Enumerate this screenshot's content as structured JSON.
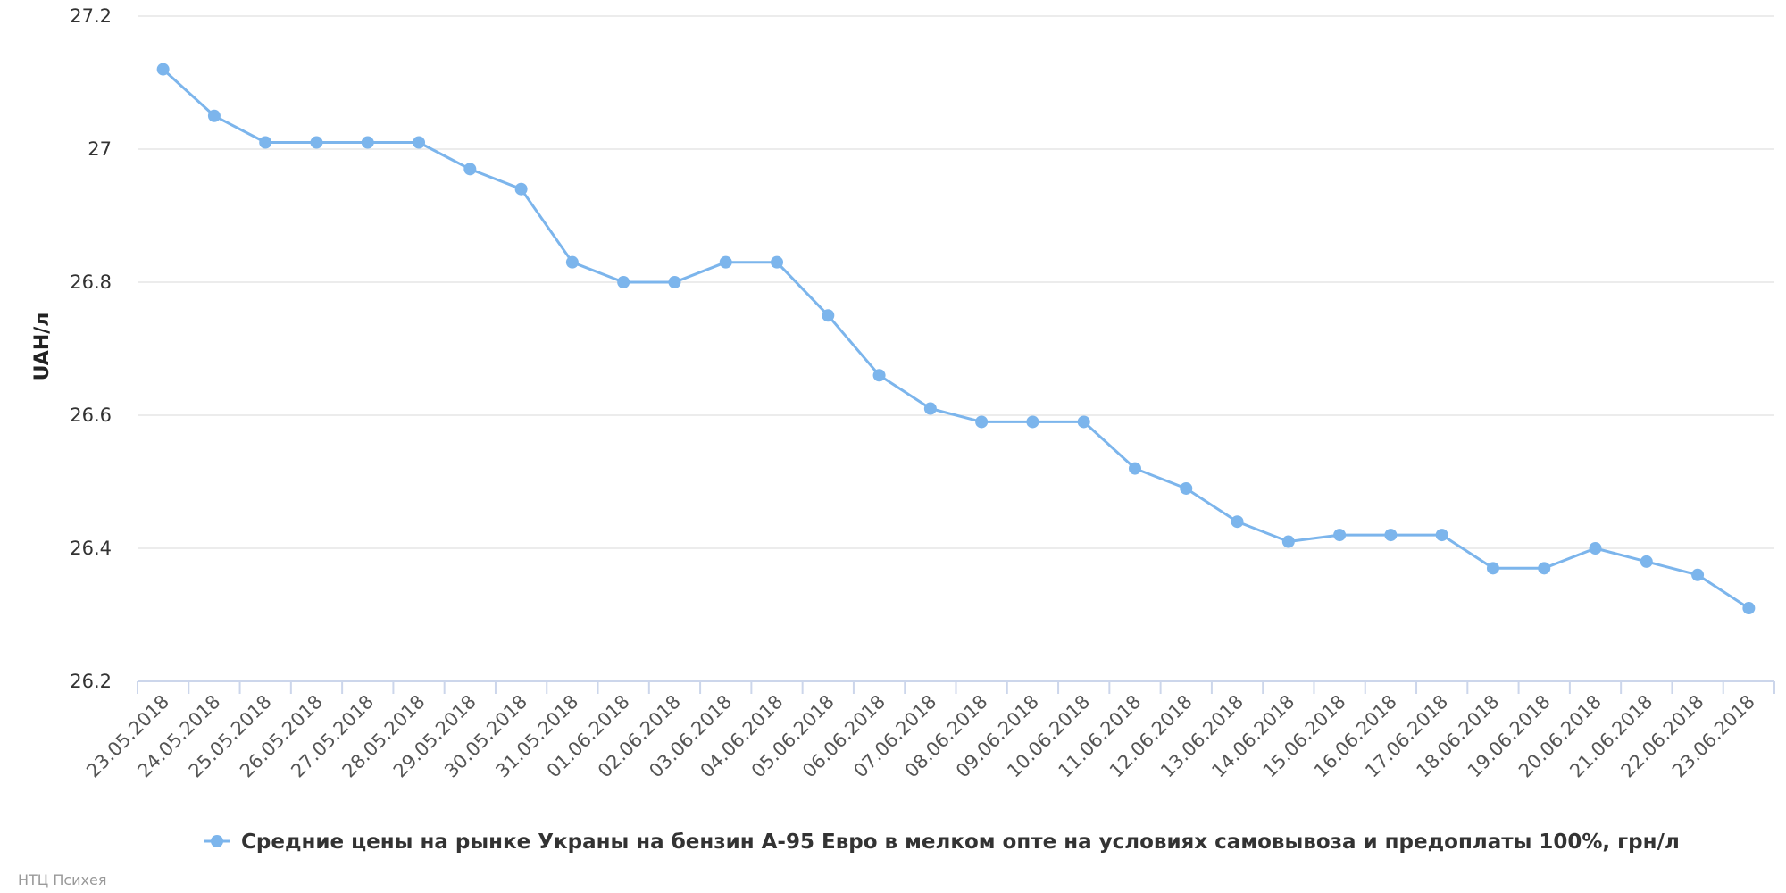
{
  "chart_data": {
    "type": "line",
    "ylabel": "UAH/л",
    "ylim": [
      26.2,
      27.2
    ],
    "yticks": [
      "27.2",
      "27",
      "26.8",
      "26.6",
      "26.4",
      "26.2"
    ],
    "grid": true,
    "legend_position": "bottom-center",
    "categories": [
      "23.05.2018",
      "24.05.2018",
      "25.05.2018",
      "26.05.2018",
      "27.05.2018",
      "28.05.2018",
      "29.05.2018",
      "30.05.2018",
      "31.05.2018",
      "01.06.2018",
      "02.06.2018",
      "03.06.2018",
      "04.06.2018",
      "05.06.2018",
      "06.06.2018",
      "07.06.2018",
      "08.06.2018",
      "09.06.2018",
      "10.06.2018",
      "11.06.2018",
      "12.06.2018",
      "13.06.2018",
      "14.06.2018",
      "15.06.2018",
      "16.06.2018",
      "17.06.2018",
      "18.06.2018",
      "19.06.2018",
      "20.06.2018",
      "21.06.2018",
      "22.06.2018",
      "23.06.2018"
    ],
    "series": [
      {
        "name": "Средние цены на рынке Украны на бензин А-95 Евро в мелком опте на условиях самовывоза и предоплаты 100%, грн/л",
        "color": "#7cb5ec",
        "values": [
          27.12,
          27.05,
          27.01,
          27.01,
          27.01,
          27.01,
          26.97,
          26.94,
          26.83,
          26.8,
          26.8,
          26.83,
          26.83,
          26.75,
          26.66,
          26.61,
          26.59,
          26.59,
          26.59,
          26.52,
          26.49,
          26.44,
          26.41,
          26.42,
          26.42,
          26.42,
          26.37,
          26.37,
          26.4,
          26.38,
          26.36,
          26.31
        ]
      }
    ]
  },
  "credit": "НТЦ Психея"
}
